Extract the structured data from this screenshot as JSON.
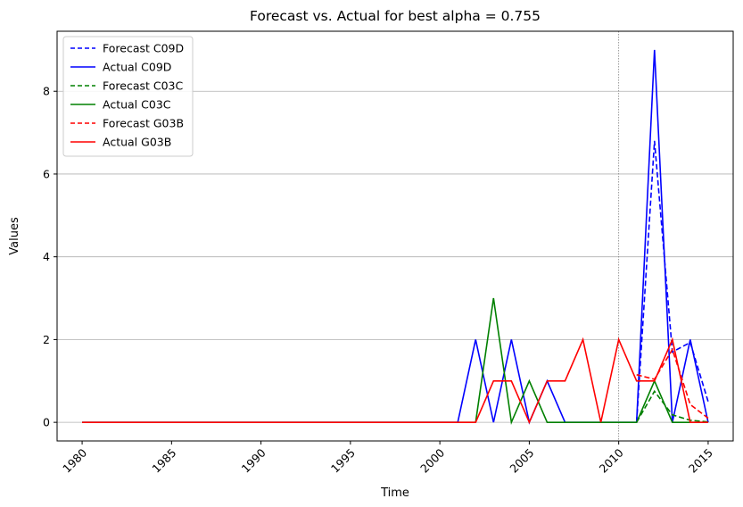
{
  "chart_data": {
    "type": "line",
    "title": "Forecast vs. Actual for best alpha = 0.755",
    "xlabel": "Time",
    "ylabel": "Values",
    "xlim": [
      1978.6,
      2016.4
    ],
    "ylim": [
      -0.45,
      9.45
    ],
    "xticks": [
      1980,
      1985,
      1990,
      1995,
      2000,
      2005,
      2010,
      2015
    ],
    "yticks": [
      0,
      2,
      4,
      6,
      8
    ],
    "grid": "horizontal",
    "vline": 2010,
    "legend_position": "upper-left",
    "x": [
      1980,
      1981,
      1982,
      1983,
      1984,
      1985,
      1986,
      1987,
      1988,
      1989,
      1990,
      1991,
      1992,
      1993,
      1994,
      1995,
      1996,
      1997,
      1998,
      1999,
      2000,
      2001,
      2002,
      2003,
      2004,
      2005,
      2006,
      2007,
      2008,
      2009,
      2010,
      2011,
      2012,
      2013,
      2014,
      2015
    ],
    "series": [
      {
        "name": "Forecast C09D",
        "color": "#0000ff",
        "style": "dashed",
        "x": [
          2011,
          2012,
          2013,
          2014,
          2015
        ],
        "values": [
          0,
          6.8,
          1.7,
          1.93,
          0.5
        ]
      },
      {
        "name": "Actual C09D",
        "color": "#0000ff",
        "style": "solid",
        "values": [
          0,
          0,
          0,
          0,
          0,
          0,
          0,
          0,
          0,
          0,
          0,
          0,
          0,
          0,
          0,
          0,
          0,
          0,
          0,
          0,
          0,
          0,
          2,
          0,
          2,
          0,
          1,
          0,
          0,
          0,
          0,
          0,
          9,
          0,
          2,
          0
        ]
      },
      {
        "name": "Forecast C03C",
        "color": "#008000",
        "style": "dashed",
        "x": [
          2011,
          2012,
          2013,
          2014,
          2015
        ],
        "values": [
          0,
          0.75,
          0.18,
          0.05,
          0.01
        ]
      },
      {
        "name": "Actual C03C",
        "color": "#008000",
        "style": "solid",
        "values": [
          0,
          0,
          0,
          0,
          0,
          0,
          0,
          0,
          0,
          0,
          0,
          0,
          0,
          0,
          0,
          0,
          0,
          0,
          0,
          0,
          0,
          0,
          0,
          3,
          0,
          1,
          0,
          0,
          0,
          0,
          0,
          0,
          1,
          0,
          0,
          0
        ]
      },
      {
        "name": "Forecast G03B",
        "color": "#ff0000",
        "style": "dashed",
        "x": [
          2011,
          2012,
          2013,
          2014,
          2015
        ],
        "values": [
          1.15,
          1.04,
          1.76,
          0.43,
          0.1
        ]
      },
      {
        "name": "Actual G03B",
        "color": "#ff0000",
        "style": "solid",
        "values": [
          0,
          0,
          0,
          0,
          0,
          0,
          0,
          0,
          0,
          0,
          0,
          0,
          0,
          0,
          0,
          0,
          0,
          0,
          0,
          0,
          0,
          0,
          0,
          1,
          1,
          0,
          1,
          1,
          2,
          0,
          2,
          1,
          1,
          2,
          0,
          0
        ]
      }
    ]
  }
}
